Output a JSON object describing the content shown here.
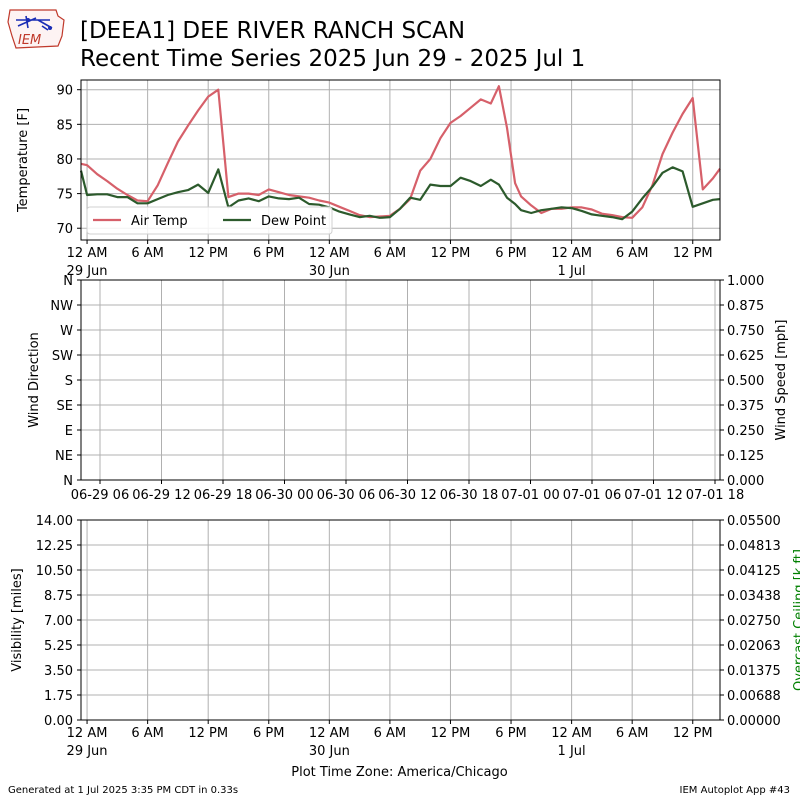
{
  "header": {
    "logo_text": "IEM",
    "title_line1": "[DEEA1] DEE RIVER RANCH SCAN",
    "title_line2": "Recent Time Series 2025 Jun 29 - 2025 Jul 1"
  },
  "footer": {
    "generated": "Generated at 1 Jul 2025 3:35 PM CDT in 0.33s",
    "app": "IEM Autoplot App #43"
  },
  "chart_data": [
    {
      "type": "line",
      "panel": "temperature",
      "ylabel": "Temperature [F]",
      "ylim": [
        68.3,
        91.4
      ],
      "yticks": [
        70,
        75,
        80,
        85,
        90
      ],
      "xlim_hours": [
        -0.6,
        62.7
      ],
      "xticks": [
        {
          "h": 0,
          "label": "12 AM",
          "sub": "29 Jun"
        },
        {
          "h": 6,
          "label": "6 AM",
          "sub": ""
        },
        {
          "h": 12,
          "label": "12 PM",
          "sub": ""
        },
        {
          "h": 18,
          "label": "6 PM",
          "sub": ""
        },
        {
          "h": 24,
          "label": "12 AM",
          "sub": "30 Jun"
        },
        {
          "h": 30,
          "label": "6 AM",
          "sub": ""
        },
        {
          "h": 36,
          "label": "12 PM",
          "sub": ""
        },
        {
          "h": 42,
          "label": "6 PM",
          "sub": ""
        },
        {
          "h": 48,
          "label": "12 AM",
          "sub": "1 Jul"
        },
        {
          "h": 54,
          "label": "6 AM",
          "sub": ""
        },
        {
          "h": 60,
          "label": "12 PM",
          "sub": ""
        }
      ],
      "grid": true,
      "legend_placement": "lower-left",
      "series": [
        {
          "name": "Air Temp",
          "color": "#d6606a",
          "hours": [
            -0.6,
            0,
            1,
            2,
            3,
            4,
            5,
            6,
            7,
            8,
            9,
            10,
            11,
            12,
            13,
            14,
            15,
            16,
            17,
            18,
            19,
            20,
            21,
            22,
            23,
            24,
            25,
            26,
            27,
            28,
            29,
            30,
            31,
            32,
            33,
            34,
            35,
            36,
            37,
            38,
            39,
            40,
            40.8,
            41.6,
            42.4,
            43,
            44,
            45,
            46,
            47,
            48,
            49,
            50,
            51,
            52,
            53,
            54,
            55,
            56,
            57,
            58,
            59,
            60,
            61,
            62,
            62.7
          ],
          "values": [
            79.3,
            79.1,
            77.8,
            76.8,
            75.7,
            74.8,
            74.0,
            73.9,
            76.2,
            79.4,
            82.5,
            84.8,
            87.0,
            89.0,
            90.0,
            74.5,
            75.0,
            75.0,
            74.8,
            75.6,
            75.2,
            74.8,
            74.6,
            74.4,
            74.0,
            73.7,
            73.1,
            72.5,
            71.9,
            71.6,
            71.7,
            71.8,
            72.8,
            74.2,
            78.3,
            80.0,
            83.0,
            85.2,
            86.2,
            87.4,
            88.6,
            88.0,
            90.5,
            84.5,
            76.5,
            74.6,
            73.3,
            72.2,
            72.8,
            72.8,
            73.0,
            73.0,
            72.7,
            72.1,
            71.9,
            71.6,
            71.5,
            73.0,
            76.2,
            80.7,
            83.8,
            86.5,
            88.8,
            75.6,
            77.2,
            78.6
          ],
          "ymap_offset": 0
        },
        {
          "name": "Dew Point",
          "color": "#2c5a2c",
          "hours": [
            -0.6,
            0,
            1,
            2,
            3,
            4,
            5,
            6,
            7,
            8,
            9,
            10,
            11,
            12,
            13,
            14,
            15,
            16,
            17,
            18,
            19,
            20,
            21,
            22,
            23,
            24,
            25,
            26,
            27,
            28,
            29,
            30,
            31,
            32,
            33,
            34,
            35,
            36,
            37,
            38,
            39,
            40,
            40.8,
            41.6,
            42.4,
            43,
            44,
            45,
            46,
            47,
            48,
            49,
            50,
            51,
            52,
            53,
            54,
            55,
            56,
            57,
            58,
            59,
            60,
            61,
            62,
            62.7
          ],
          "values": [
            78.3,
            74.8,
            74.9,
            74.9,
            74.5,
            74.5,
            73.6,
            73.6,
            74.2,
            74.8,
            75.2,
            75.5,
            76.3,
            75.1,
            78.5,
            73.0,
            74.0,
            74.3,
            73.9,
            74.6,
            74.3,
            74.2,
            74.4,
            73.5,
            73.4,
            73.0,
            72.4,
            72.0,
            71.6,
            71.8,
            71.5,
            71.6,
            72.8,
            74.4,
            74.1,
            76.3,
            76.1,
            76.1,
            77.3,
            76.8,
            76.1,
            77.0,
            76.3,
            74.4,
            73.5,
            72.6,
            72.2,
            72.6,
            72.8,
            73.0,
            72.9,
            72.5,
            72.0,
            71.8,
            71.6,
            71.3,
            72.4,
            74.3,
            76.0,
            78.0,
            78.8,
            78.2,
            73.1,
            73.6,
            74.1,
            74.2
          ]
        }
      ]
    },
    {
      "type": "line",
      "panel": "wind",
      "ylabel": "Wind Direction",
      "ylabel_right": "Wind Speed [mph]",
      "yticks_left": [
        "N",
        "NE",
        "E",
        "SE",
        "S",
        "SW",
        "W",
        "NW",
        "N"
      ],
      "yticks_right": [
        "0.000",
        "0.125",
        "0.250",
        "0.375",
        "0.500",
        "0.625",
        "0.750",
        "0.875",
        "1.000"
      ],
      "xticks": [
        "06-29 06",
        "06-29 12",
        "06-29 18",
        "06-30 00",
        "06-30 06",
        "06-30 12",
        "06-30 18",
        "07-01 00",
        "07-01 06",
        "07-01 12",
        "07-01 18"
      ],
      "grid": true,
      "series": []
    },
    {
      "type": "line",
      "panel": "visibility",
      "ylabel": "Visibility [miles]",
      "ylabel_right": "Overcast Ceiling [k ft]",
      "ylabel_right_color": "#008000",
      "yticks_left": [
        "0.00",
        "1.75",
        "3.50",
        "5.25",
        "7.00",
        "8.75",
        "10.50",
        "12.25",
        "14.00"
      ],
      "yticks_right": [
        "0.00000",
        "0.00688",
        "0.01375",
        "0.02063",
        "0.02750",
        "0.03438",
        "0.04125",
        "0.04813",
        "0.05500"
      ],
      "xlabel": "Plot Time Zone: America/Chicago",
      "xticks": [
        {
          "h": 0,
          "label": "12 AM",
          "sub": "29 Jun"
        },
        {
          "h": 6,
          "label": "6 AM",
          "sub": ""
        },
        {
          "h": 12,
          "label": "12 PM",
          "sub": ""
        },
        {
          "h": 18,
          "label": "6 PM",
          "sub": ""
        },
        {
          "h": 24,
          "label": "12 AM",
          "sub": "30 Jun"
        },
        {
          "h": 30,
          "label": "6 AM",
          "sub": ""
        },
        {
          "h": 36,
          "label": "12 PM",
          "sub": ""
        },
        {
          "h": 42,
          "label": "6 PM",
          "sub": ""
        },
        {
          "h": 48,
          "label": "12 AM",
          "sub": "1 Jul"
        },
        {
          "h": 54,
          "label": "6 AM",
          "sub": ""
        },
        {
          "h": 60,
          "label": "12 PM",
          "sub": ""
        }
      ],
      "grid": true,
      "series": []
    }
  ]
}
